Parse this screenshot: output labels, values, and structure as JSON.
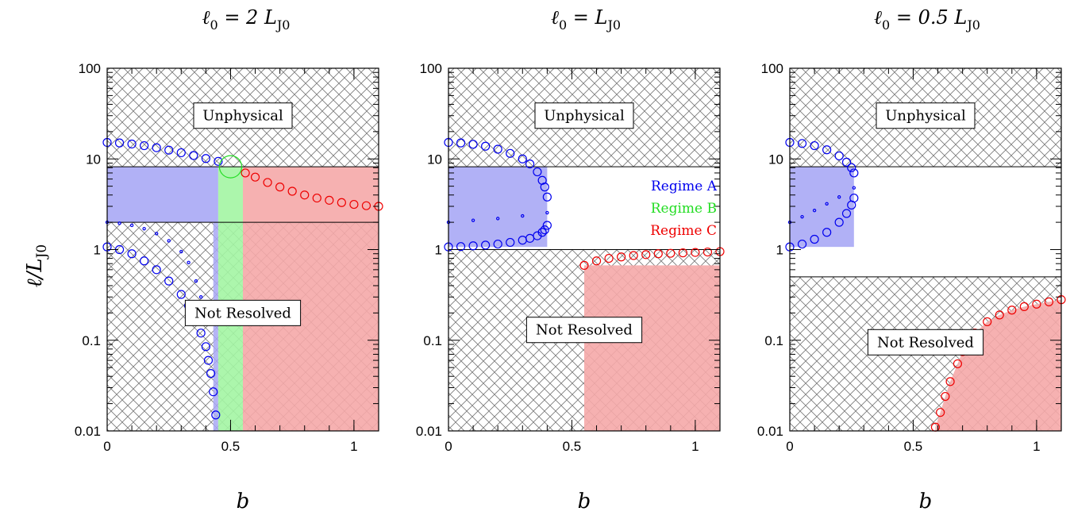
{
  "chart_data": {
    "type": "scatter",
    "ylabel": "ℓ/L_J0",
    "yscale": "log",
    "ylim": [
      0.01,
      100
    ],
    "yticks": [
      "0.01",
      "0.1",
      "1",
      "10",
      "100"
    ],
    "grid": false,
    "legend_position": "center-right (middle panel)",
    "legend": [
      {
        "name": "Regime A",
        "color": "#0000ee"
      },
      {
        "name": "Regime B",
        "color": "#22dd22"
      },
      {
        "name": "Regime C",
        "color": "#ee0000"
      }
    ],
    "colors": {
      "regime_a_fill": "#a8a8f5",
      "regime_b_fill": "#a3f5a3",
      "regime_c_fill": "#f5a8a8",
      "hatch": "#777777"
    },
    "region_labels": {
      "top": "Unphysical",
      "bottom": "Not Resolved"
    },
    "panels": [
      {
        "title_main": "ℓ",
        "title_sub": "0",
        "title_rest": " = 2 L",
        "title_unit_sub": "J0",
        "xlabel": "b",
        "xlim": [
          0,
          1.1
        ],
        "xticks": [
          "0",
          "0.5",
          "1"
        ],
        "unphysical_above": 8.2,
        "resolved_below": 2.0,
        "regime_a_fill": {
          "from": 0,
          "to": 0.45,
          "y_low": 2.0,
          "y_high": 8.2
        },
        "regime_b_fill": {
          "from": 0.45,
          "to": 0.55
        },
        "regime_c_fill": {
          "from": 0.55,
          "to": 1.1
        },
        "regime_a_upper": {
          "x": [
            0,
            0.05,
            0.1,
            0.15,
            0.2,
            0.25,
            0.3,
            0.35,
            0.4,
            0.45
          ],
          "y": [
            15.2,
            15.0,
            14.6,
            14.0,
            13.3,
            12.5,
            11.7,
            10.9,
            10.1,
            9.4
          ]
        },
        "regime_a_lower": {
          "x": [
            0,
            0.05,
            0.1,
            0.15,
            0.2,
            0.25,
            0.3,
            0.33,
            0.36,
            0.38,
            0.4,
            0.41,
            0.42,
            0.43,
            0.44
          ],
          "y": [
            1.07,
            1.0,
            0.9,
            0.75,
            0.6,
            0.45,
            0.32,
            0.24,
            0.17,
            0.12,
            0.085,
            0.06,
            0.043,
            0.027,
            0.015
          ]
        },
        "regime_a_middle": {
          "x": [
            0,
            0.05,
            0.1,
            0.15,
            0.2,
            0.25,
            0.3,
            0.33,
            0.36,
            0.38,
            0.4
          ],
          "y": [
            2.0,
            1.95,
            1.85,
            1.7,
            1.5,
            1.25,
            0.95,
            0.72,
            0.45,
            0.3,
            0.2
          ]
        },
        "regime_b_point": {
          "x": [
            0.5
          ],
          "y": [
            8.2
          ]
        },
        "regime_c": {
          "x": [
            0.56,
            0.6,
            0.65,
            0.7,
            0.75,
            0.8,
            0.85,
            0.9,
            0.95,
            1.0,
            1.05,
            1.1
          ],
          "y": [
            7.0,
            6.3,
            5.5,
            4.9,
            4.4,
            4.0,
            3.7,
            3.5,
            3.3,
            3.15,
            3.05,
            3.0
          ]
        },
        "unphysical_box": {
          "x": 0.55,
          "y": 30
        },
        "not_resolved_box": {
          "x": 0.55,
          "y": 0.2
        }
      },
      {
        "title_main": "ℓ",
        "title_sub": "0",
        "title_rest": " = L",
        "title_unit_sub": "J0",
        "xlabel": "b",
        "xlim": [
          0,
          1.1
        ],
        "xticks": [
          "0",
          "0.5",
          "1"
        ],
        "unphysical_above": 8.2,
        "resolved_below": 1.0,
        "regime_a_fill": {
          "from": 0,
          "to": 0.4,
          "y_low": 1.0,
          "y_high": 8.2
        },
        "regime_c_fill": {
          "from": 0.55,
          "to": 1.1
        },
        "regime_a_upper": {
          "x": [
            0,
            0.05,
            0.1,
            0.15,
            0.2,
            0.25,
            0.3,
            0.33,
            0.36,
            0.38,
            0.39,
            0.4
          ],
          "y": [
            15.2,
            15.0,
            14.5,
            13.8,
            12.8,
            11.5,
            10.0,
            8.8,
            7.2,
            5.8,
            4.9,
            3.8
          ]
        },
        "regime_a_lower": {
          "x": [
            0,
            0.05,
            0.1,
            0.15,
            0.2,
            0.25,
            0.3,
            0.33,
            0.36,
            0.38,
            0.39,
            0.4
          ],
          "y": [
            1.07,
            1.08,
            1.1,
            1.12,
            1.15,
            1.2,
            1.27,
            1.33,
            1.42,
            1.55,
            1.65,
            1.85
          ]
        },
        "regime_a_middle": {
          "x": [
            0,
            0.1,
            0.2,
            0.3,
            0.4
          ],
          "y": [
            2.0,
            2.1,
            2.2,
            2.35,
            2.55
          ]
        },
        "regime_c": {
          "x": [
            0.55,
            0.6,
            0.65,
            0.7,
            0.75,
            0.8,
            0.85,
            0.9,
            0.95,
            1.0,
            1.05,
            1.1
          ],
          "y": [
            0.67,
            0.75,
            0.8,
            0.83,
            0.86,
            0.88,
            0.9,
            0.91,
            0.92,
            0.93,
            0.94,
            0.95
          ]
        },
        "unphysical_box": {
          "x": 0.55,
          "y": 30
        },
        "not_resolved_box": {
          "x": 0.55,
          "y": 0.13
        }
      },
      {
        "title_main": "ℓ",
        "title_sub": "0",
        "title_rest": " = 0.5 L",
        "title_unit_sub": "J0",
        "xlabel": "b",
        "xlim": [
          0,
          1.1
        ],
        "xticks": [
          "0",
          "0.5",
          "1"
        ],
        "unphysical_above": 8.2,
        "resolved_below": 0.5,
        "regime_a_fill": {
          "from": 0,
          "to": 0.26,
          "y_low": 1.07,
          "y_high": 8.2
        },
        "regime_a_upper": {
          "x": [
            0,
            0.05,
            0.1,
            0.15,
            0.2,
            0.23,
            0.25,
            0.26
          ],
          "y": [
            15.2,
            14.8,
            14.0,
            12.6,
            10.8,
            9.2,
            8.0,
            7.0
          ]
        },
        "regime_a_lower": {
          "x": [
            0,
            0.05,
            0.1,
            0.15,
            0.2,
            0.23,
            0.25,
            0.26
          ],
          "y": [
            1.07,
            1.15,
            1.3,
            1.55,
            2.0,
            2.5,
            3.1,
            3.7
          ]
        },
        "regime_a_middle": {
          "x": [
            0,
            0.05,
            0.1,
            0.15,
            0.2,
            0.26
          ],
          "y": [
            2.0,
            2.3,
            2.7,
            3.2,
            3.8,
            4.8
          ]
        },
        "regime_c": {
          "x": [
            0.59,
            0.61,
            0.63,
            0.65,
            0.68,
            0.7,
            0.75,
            0.8,
            0.85,
            0.9,
            0.95,
            1.0,
            1.05,
            1.1
          ],
          "y": [
            0.011,
            0.016,
            0.024,
            0.035,
            0.055,
            0.075,
            0.12,
            0.16,
            0.19,
            0.215,
            0.235,
            0.25,
            0.265,
            0.28
          ]
        },
        "unphysical_box": {
          "x": 0.55,
          "y": 30
        },
        "not_resolved_box": {
          "x": 0.55,
          "y": 0.095
        }
      }
    ]
  }
}
